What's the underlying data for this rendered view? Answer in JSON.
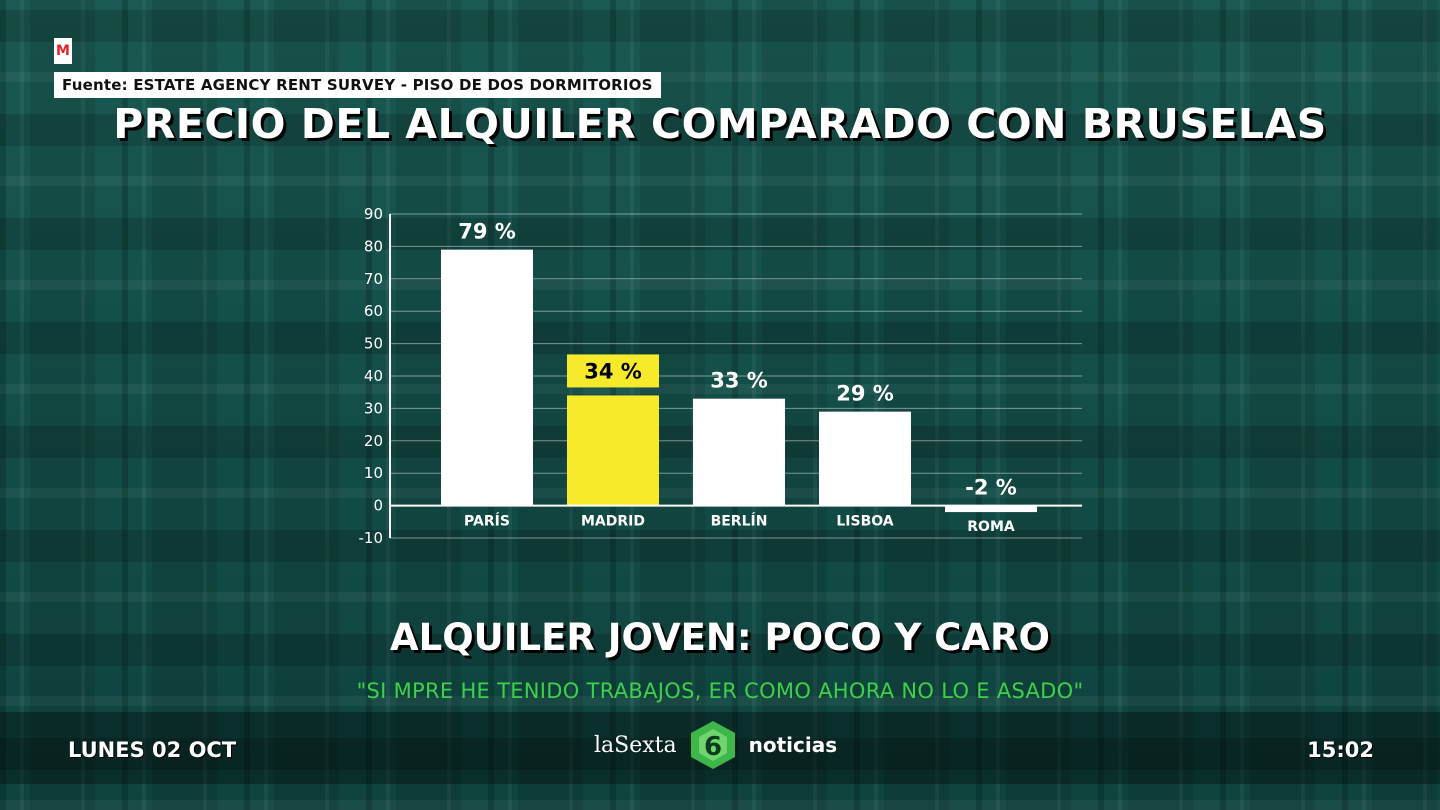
{
  "header": {
    "logo_letter": "M",
    "source": "Fuente: ESTATE AGENCY RENT SURVEY - PISO DE DOS DORMITORIOS",
    "title": "PRECIO DEL ALQUILER COMPARADO CON BRUSELAS"
  },
  "colors": {
    "background": "#124a44",
    "bar_default": "#ffffff",
    "bar_highlight": "#f7ea2b",
    "quote_text": "#3fd04a"
  },
  "chart_data": {
    "type": "bar",
    "title": "PRECIO DEL ALQUILER COMPARADO CON BRUSELAS",
    "categories": [
      "PARÍS",
      "MADRID",
      "BERLÍN",
      "LISBOA",
      "ROMA"
    ],
    "values": [
      79,
      34,
      33,
      29,
      -2
    ],
    "value_labels": [
      "79 %",
      "34 %",
      "33 %",
      "29 %",
      "-2 %"
    ],
    "highlight_category": "MADRID",
    "ylim": [
      -10,
      90
    ],
    "yticks": [
      90,
      80,
      70,
      60,
      50,
      40,
      30,
      20,
      10,
      0,
      -10
    ],
    "grid": true,
    "xlabel": "",
    "ylabel": ""
  },
  "lower_third": {
    "headline": "ALQUILER JOVEN: POCO Y CARO",
    "quote": "\"SI  MPRE HE TENIDO TRABAJOS,   ER   COMO AHORA NO LO    E   ASADO\""
  },
  "footer": {
    "date": "LUNES 02 OCT",
    "brand_la": "laSexta",
    "brand_six": "6",
    "brand_news": "noticias",
    "time": "15:02"
  }
}
